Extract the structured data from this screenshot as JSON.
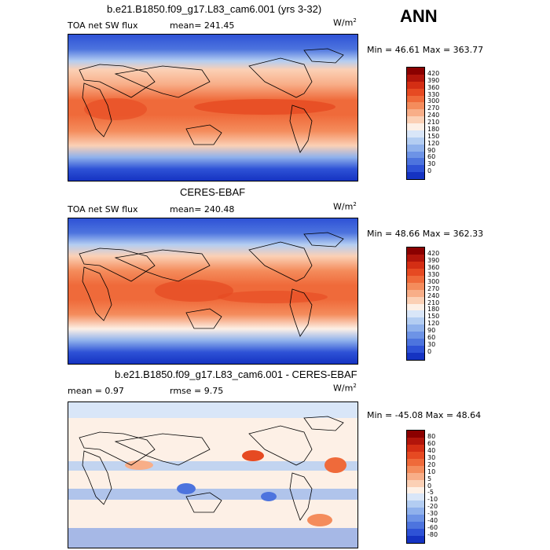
{
  "season": "ANN",
  "units_base": "W/m",
  "units_exp": "2",
  "panels": [
    {
      "title": "b.e21.B1850.f09_g17.L83_cam6.001 (yrs 3-32)",
      "left_label": "TOA net SW flux",
      "center_label": "mean= 241.45",
      "minmax": "Min =  46.61 Max = 363.77"
    },
    {
      "title": "CERES-EBAF",
      "left_label": "TOA net SW flux",
      "center_label": "mean= 240.48",
      "minmax": "Min =  48.66 Max = 362.33"
    },
    {
      "title": "b.e21.B1850.f09_g17.L83_cam6.001 - CERES-EBAF",
      "left_label": "mean =   0.97",
      "center_label": "rmse =   9.75",
      "minmax": "Min = -45.08 Max =  48.64"
    }
  ],
  "colorbar_abs": {
    "labels": [
      "420",
      "390",
      "360",
      "330",
      "300",
      "270",
      "240",
      "210",
      "180",
      "150",
      "120",
      "90",
      "60",
      "30",
      "0"
    ],
    "colors": [
      "#8b0000",
      "#b2150b",
      "#d42e14",
      "#e64a22",
      "#ef6a3a",
      "#f48c5c",
      "#f8ae88",
      "#fbd0b5",
      "#fdf0e6",
      "#d9e6f8",
      "#b3cdf2",
      "#8fb1ec",
      "#6d93e6",
      "#4d74de",
      "#2e52d6",
      "#1533c2"
    ]
  },
  "colorbar_diff": {
    "labels": [
      "80",
      "60",
      "40",
      "30",
      "20",
      "10",
      "5",
      "0",
      "-5",
      "-10",
      "-20",
      "-30",
      "-40",
      "-60",
      "-80"
    ],
    "colors": [
      "#8b0000",
      "#b2150b",
      "#d42e14",
      "#e64a22",
      "#ef6a3a",
      "#f48c5c",
      "#f8ae88",
      "#fbd0b5",
      "#fdf0e6",
      "#d9e6f8",
      "#b3cdf2",
      "#8fb1ec",
      "#6d93e6",
      "#4d74de",
      "#2e52d6",
      "#1533c2"
    ]
  }
}
